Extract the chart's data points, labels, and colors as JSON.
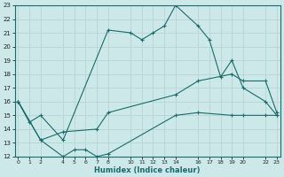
{
  "xlabel": "Humidex (Indice chaleur)",
  "bg_color": "#cce8e8",
  "grid_color": "#b8d8d8",
  "line_color": "#1a6b6b",
  "line1_x": [
    0,
    1,
    2,
    4,
    8,
    10,
    11,
    12,
    13,
    14,
    16,
    17,
    18,
    19,
    20,
    22,
    23
  ],
  "line1_y": [
    16,
    14.5,
    15.0,
    13.2,
    21.2,
    21.0,
    20.5,
    21.0,
    21.5,
    23.0,
    21.5,
    20.5,
    17.8,
    19.0,
    17.0,
    16.0,
    15.0
  ],
  "line2_x": [
    0,
    2,
    4,
    7,
    8,
    14,
    16,
    19,
    20,
    22,
    23
  ],
  "line2_y": [
    16,
    13.2,
    13.8,
    14.0,
    15.2,
    16.5,
    17.5,
    18.0,
    17.5,
    17.5,
    15.2
  ],
  "line3_x": [
    0,
    2,
    4,
    5,
    6,
    7,
    8,
    14,
    16,
    19,
    20,
    22,
    23
  ],
  "line3_y": [
    16,
    13.2,
    12.0,
    12.5,
    12.5,
    12.0,
    12.2,
    15.0,
    15.2,
    15.0,
    15.0,
    15.0,
    15.0
  ],
  "ylim": [
    12,
    23
  ],
  "xlim": [
    -0.3,
    23.3
  ],
  "yticks": [
    12,
    13,
    14,
    15,
    16,
    17,
    18,
    19,
    20,
    21,
    22,
    23
  ],
  "xticks": [
    0,
    1,
    2,
    4,
    5,
    6,
    7,
    8,
    10,
    11,
    12,
    13,
    14,
    16,
    17,
    18,
    19,
    20,
    22,
    23
  ]
}
